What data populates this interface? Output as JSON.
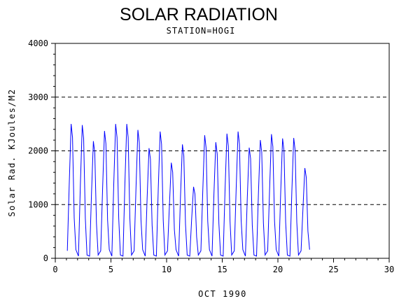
{
  "chart_data": {
    "type": "line",
    "title": "SOLAR RADIATION",
    "subtitle": "STATION=HOGI",
    "xlabel": "OCT 1990",
    "ylabel": "Solar Rad. KJoules/M2",
    "xlim": [
      0,
      30
    ],
    "ylim": [
      0,
      4000
    ],
    "x_ticks": [
      "0",
      "5",
      "10",
      "15",
      "20",
      "25",
      "30"
    ],
    "y_ticks": [
      "0",
      "1000",
      "2000",
      "3000",
      "4000"
    ],
    "grid": "horizontal dashed",
    "colors": {
      "series": "#0000ff",
      "axis": "#000000"
    },
    "series": [
      {
        "daily_peaks": [
          {
            "day": 1,
            "peak": 2500
          },
          {
            "day": 2,
            "peak": 2480
          },
          {
            "day": 3,
            "peak": 2180
          },
          {
            "day": 4,
            "peak": 2370
          },
          {
            "day": 5,
            "peak": 2500
          },
          {
            "day": 6,
            "peak": 2500
          },
          {
            "day": 7,
            "peak": 2390
          },
          {
            "day": 8,
            "peak": 2050
          },
          {
            "day": 9,
            "peak": 2360
          },
          {
            "day": 10,
            "peak": 1780
          },
          {
            "day": 11,
            "peak": 2120
          },
          {
            "day": 12,
            "peak": 1330
          },
          {
            "day": 13,
            "peak": 2290
          },
          {
            "day": 14,
            "peak": 2160
          },
          {
            "day": 15,
            "peak": 2320
          },
          {
            "day": 16,
            "peak": 2360
          },
          {
            "day": 17,
            "peak": 2060
          },
          {
            "day": 18,
            "peak": 2200
          },
          {
            "day": 19,
            "peak": 2310
          },
          {
            "day": 20,
            "peak": 2230
          },
          {
            "day": 21,
            "peak": 2240
          },
          {
            "day": 22,
            "peak": 1680
          }
        ]
      }
    ]
  }
}
